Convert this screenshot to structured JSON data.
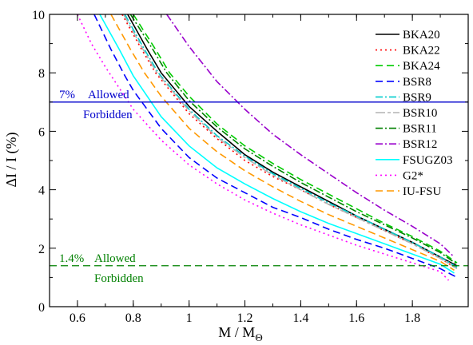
{
  "chart_data": {
    "type": "line",
    "title": "",
    "xlabel": "M / M",
    "xlabel_sub": "Θ",
    "ylabel": "ΔI / I (%)",
    "xlim": [
      0.5,
      2.0
    ],
    "ylim": [
      0,
      10
    ],
    "xticks": [
      0.6,
      0.8,
      1,
      1.2,
      1.4,
      1.6,
      1.8
    ],
    "xtick_labels": [
      "0.6",
      "0.8",
      "1",
      "1.2",
      "1.4",
      "1.6",
      "1.8"
    ],
    "yticks": [
      0,
      2,
      4,
      6,
      8,
      10
    ],
    "ytick_labels": [
      "0",
      "2",
      "4",
      "6",
      "8",
      "10"
    ],
    "grid": false,
    "legend_position": "top-right",
    "series": [
      {
        "name": "BKA20",
        "color": "#000000",
        "dash": "solid",
        "points": [
          [
            0.78,
            10
          ],
          [
            0.85,
            8.8
          ],
          [
            0.9,
            8.0
          ],
          [
            1.0,
            6.85
          ],
          [
            1.1,
            6.0
          ],
          [
            1.2,
            5.2
          ],
          [
            1.3,
            4.6
          ],
          [
            1.4,
            4.1
          ],
          [
            1.5,
            3.6
          ],
          [
            1.6,
            3.1
          ],
          [
            1.7,
            2.65
          ],
          [
            1.8,
            2.2
          ],
          [
            1.9,
            1.7
          ],
          [
            1.96,
            1.4
          ]
        ]
      },
      {
        "name": "BKA22",
        "color": "#ff0000",
        "dash": "dot",
        "points": [
          [
            0.76,
            10
          ],
          [
            0.83,
            8.8
          ],
          [
            0.88,
            8.0
          ],
          [
            1.0,
            6.6
          ],
          [
            1.1,
            5.75
          ],
          [
            1.2,
            5.0
          ],
          [
            1.3,
            4.45
          ],
          [
            1.4,
            4.0
          ],
          [
            1.5,
            3.5
          ],
          [
            1.6,
            3.05
          ],
          [
            1.7,
            2.6
          ],
          [
            1.8,
            2.15
          ],
          [
            1.9,
            1.65
          ],
          [
            1.96,
            1.3
          ]
        ]
      },
      {
        "name": "BKA24",
        "color": "#00cc00",
        "dash": "dash",
        "points": [
          [
            0.8,
            10
          ],
          [
            0.88,
            8.8
          ],
          [
            0.93,
            8.0
          ],
          [
            1.0,
            7.2
          ],
          [
            1.1,
            6.25
          ],
          [
            1.2,
            5.5
          ],
          [
            1.3,
            4.9
          ],
          [
            1.4,
            4.35
          ],
          [
            1.5,
            3.85
          ],
          [
            1.6,
            3.35
          ],
          [
            1.7,
            2.85
          ],
          [
            1.8,
            2.4
          ],
          [
            1.9,
            1.9
          ],
          [
            1.96,
            1.5
          ]
        ]
      },
      {
        "name": "BSR8",
        "color": "#0000ff",
        "dash": "dash",
        "points": [
          [
            0.66,
            10
          ],
          [
            0.72,
            8.8
          ],
          [
            0.77,
            7.9
          ],
          [
            0.8,
            7.4
          ],
          [
            0.9,
            6.1
          ],
          [
            1.0,
            5.1
          ],
          [
            1.1,
            4.4
          ],
          [
            1.2,
            3.9
          ],
          [
            1.3,
            3.4
          ],
          [
            1.4,
            3.05
          ],
          [
            1.5,
            2.65
          ],
          [
            1.6,
            2.3
          ],
          [
            1.7,
            2.0
          ],
          [
            1.8,
            1.65
          ],
          [
            1.9,
            1.3
          ],
          [
            1.96,
            1.0
          ]
        ]
      },
      {
        "name": "BSR9",
        "color": "#00cccc",
        "dash": "dashdot",
        "points": [
          [
            0.77,
            10
          ],
          [
            0.84,
            8.8
          ],
          [
            0.89,
            8.0
          ],
          [
            1.0,
            6.75
          ],
          [
            1.1,
            5.85
          ],
          [
            1.2,
            5.15
          ],
          [
            1.3,
            4.55
          ],
          [
            1.4,
            4.05
          ],
          [
            1.5,
            3.55
          ],
          [
            1.6,
            3.1
          ],
          [
            1.7,
            2.65
          ],
          [
            1.8,
            2.2
          ],
          [
            1.9,
            1.7
          ],
          [
            1.96,
            1.35
          ]
        ]
      },
      {
        "name": "BSR10",
        "color": "#b3b3b3",
        "dash": "dashdash",
        "points": [
          [
            0.765,
            10
          ],
          [
            0.835,
            8.8
          ],
          [
            0.885,
            8.0
          ],
          [
            1.0,
            6.7
          ],
          [
            1.1,
            5.8
          ],
          [
            1.2,
            5.1
          ],
          [
            1.3,
            4.5
          ],
          [
            1.4,
            4.0
          ],
          [
            1.5,
            3.5
          ],
          [
            1.6,
            3.05
          ],
          [
            1.7,
            2.6
          ],
          [
            1.8,
            2.15
          ],
          [
            1.9,
            1.65
          ],
          [
            1.96,
            1.3
          ]
        ]
      },
      {
        "name": "BSR11",
        "color": "#008000",
        "dash": "dashdot",
        "points": [
          [
            0.79,
            10
          ],
          [
            0.87,
            8.8
          ],
          [
            0.92,
            8.0
          ],
          [
            1.0,
            7.05
          ],
          [
            1.1,
            6.15
          ],
          [
            1.2,
            5.4
          ],
          [
            1.3,
            4.8
          ],
          [
            1.4,
            4.25
          ],
          [
            1.5,
            3.75
          ],
          [
            1.6,
            3.25
          ],
          [
            1.7,
            2.8
          ],
          [
            1.8,
            2.35
          ],
          [
            1.9,
            1.85
          ],
          [
            1.96,
            1.45
          ]
        ]
      },
      {
        "name": "BSR12",
        "color": "#9900cc",
        "dash": "dashdot",
        "points": [
          [
            0.92,
            10
          ],
          [
            1.0,
            8.9
          ],
          [
            1.1,
            7.7
          ],
          [
            1.2,
            6.75
          ],
          [
            1.3,
            5.9
          ],
          [
            1.4,
            5.2
          ],
          [
            1.5,
            4.55
          ],
          [
            1.6,
            3.9
          ],
          [
            1.7,
            3.3
          ],
          [
            1.8,
            2.75
          ],
          [
            1.9,
            2.15
          ],
          [
            1.95,
            1.7
          ]
        ]
      },
      {
        "name": "FSUGZ03",
        "color": "#00ffff",
        "dash": "solid",
        "points": [
          [
            0.68,
            10
          ],
          [
            0.75,
            8.8
          ],
          [
            0.8,
            7.9
          ],
          [
            0.9,
            6.5
          ],
          [
            1.0,
            5.5
          ],
          [
            1.1,
            4.75
          ],
          [
            1.2,
            4.2
          ],
          [
            1.3,
            3.7
          ],
          [
            1.4,
            3.25
          ],
          [
            1.5,
            2.85
          ],
          [
            1.6,
            2.5
          ],
          [
            1.7,
            2.15
          ],
          [
            1.8,
            1.8
          ],
          [
            1.9,
            1.45
          ],
          [
            1.95,
            1.15
          ]
        ]
      },
      {
        "name": "G2*",
        "color": "#ff00ff",
        "dash": "dot",
        "points": [
          [
            0.6,
            10
          ],
          [
            0.65,
            9.0
          ],
          [
            0.7,
            8.2
          ],
          [
            0.8,
            6.75
          ],
          [
            0.9,
            5.7
          ],
          [
            1.0,
            4.85
          ],
          [
            1.1,
            4.2
          ],
          [
            1.2,
            3.65
          ],
          [
            1.3,
            3.2
          ],
          [
            1.4,
            2.8
          ],
          [
            1.5,
            2.45
          ],
          [
            1.6,
            2.1
          ],
          [
            1.7,
            1.8
          ],
          [
            1.8,
            1.5
          ],
          [
            1.9,
            1.2
          ],
          [
            1.93,
            0.9
          ]
        ]
      },
      {
        "name": "IU-FSU",
        "color": "#ff9900",
        "dash": "dash",
        "points": [
          [
            0.72,
            10
          ],
          [
            0.79,
            8.8
          ],
          [
            0.84,
            8.0
          ],
          [
            0.9,
            7.2
          ],
          [
            1.0,
            6.1
          ],
          [
            1.1,
            5.3
          ],
          [
            1.2,
            4.65
          ],
          [
            1.3,
            4.1
          ],
          [
            1.4,
            3.6
          ],
          [
            1.5,
            3.15
          ],
          [
            1.6,
            2.75
          ],
          [
            1.7,
            2.35
          ],
          [
            1.8,
            1.95
          ],
          [
            1.9,
            1.55
          ],
          [
            1.95,
            1.25
          ]
        ]
      }
    ],
    "reference_lines": [
      {
        "y": 7.0,
        "color": "#0000cc",
        "dash": "solid",
        "label_value": "7%",
        "label_above": "Allowed",
        "label_below": "Forbidden"
      },
      {
        "y": 1.4,
        "color": "#008000",
        "dash": "dash",
        "label_value": "1.4%",
        "label_above": "Allowed",
        "label_below": "Forbidden"
      }
    ]
  }
}
